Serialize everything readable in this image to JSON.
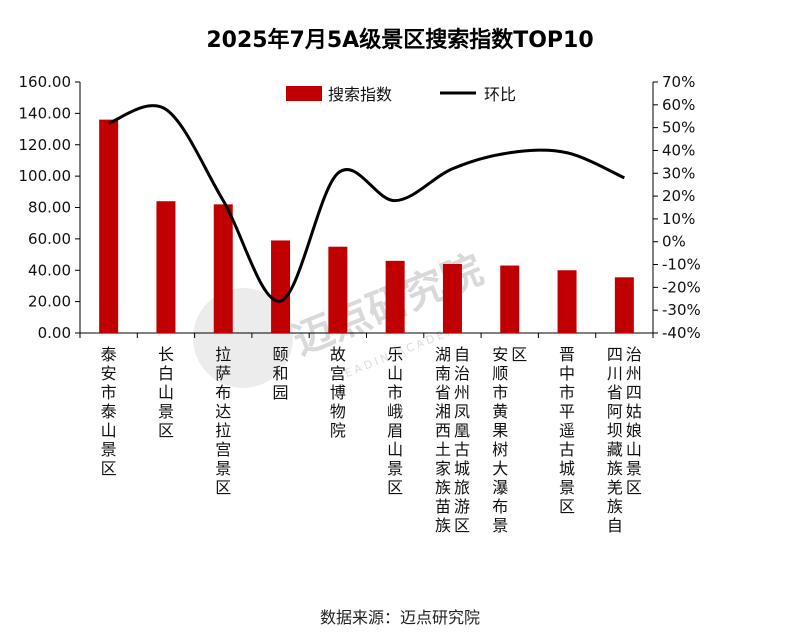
{
  "chart_data": {
    "type": "bar+line",
    "title": "2025年7月5A级景区搜索指数TOP10",
    "categories": [
      "泰安市泰山景区",
      "长白山景区",
      "拉萨布达拉宫景区",
      "颐和园",
      "故宫博物院",
      "乐山市峨眉山景区",
      "湖南省湘西土家族苗族自治州凤凰古城旅游区",
      "安顺市黄果树大瀑布景区",
      "晋中市平遥古城景区",
      "四川省阿坝藏族羌族自治州四姑娘山景区"
    ],
    "category_label_columns": [
      [
        "泰安市泰山景区"
      ],
      [
        "长白山景区"
      ],
      [
        "拉萨布达拉宫景区"
      ],
      [
        "颐和园"
      ],
      [
        "故宫博物院"
      ],
      [
        "乐山市峨眉山景区"
      ],
      [
        "湖南省湘西土家族苗族",
        "自治州凤凰古城旅游区"
      ],
      [
        "安顺市黄果树大瀑布景",
        "区"
      ],
      [
        "晋中市平遥古城景区"
      ],
      [
        "四川省阿坝藏族羌族自",
        "治州四姑娘山景区"
      ]
    ],
    "series": [
      {
        "name": "搜索指数",
        "type": "bar",
        "axis": "left",
        "color": "#c00000",
        "values": [
          136,
          84,
          82,
          59,
          55,
          46,
          44,
          43,
          40,
          35.5
        ]
      },
      {
        "name": "环比",
        "type": "line",
        "axis": "right",
        "unit": "%",
        "color": "#000000",
        "values": [
          52,
          58,
          18,
          -26,
          30,
          18,
          32,
          39,
          39,
          28
        ]
      }
    ],
    "y_left": {
      "min": 0,
      "max": 160,
      "step": 20,
      "tick_labels": [
        "0.00",
        "20.00",
        "40.00",
        "60.00",
        "80.00",
        "100.00",
        "120.00",
        "140.00",
        "160.00"
      ]
    },
    "y_right": {
      "min": -40,
      "max": 70,
      "step": 10,
      "tick_labels": [
        "-40%",
        "-30%",
        "-20%",
        "-10%",
        "0%",
        "10%",
        "20%",
        "30%",
        "40%",
        "50%",
        "60%",
        "70%"
      ]
    },
    "legend": {
      "position": "top-center",
      "items": [
        "搜索指数",
        "环比"
      ]
    },
    "grid": false
  },
  "source": "数据来源：迈点研究院",
  "watermark": {
    "text": "迈点研究院",
    "subtext": "MEADIN ACADEMY"
  }
}
